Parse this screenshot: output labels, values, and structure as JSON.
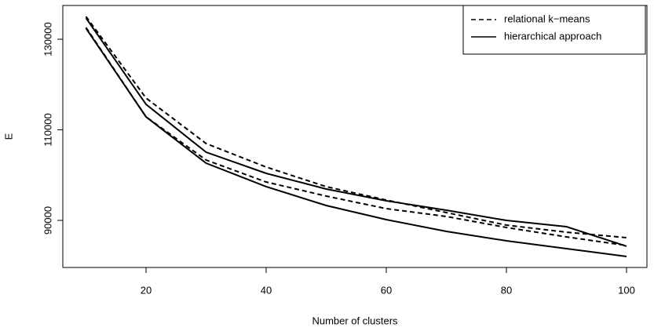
{
  "chart_data": {
    "type": "line",
    "xlabel": "Number of clusters",
    "ylabel": "E",
    "x": [
      10,
      20,
      30,
      40,
      50,
      60,
      70,
      80,
      90,
      100
    ],
    "series": [
      {
        "name": "relational k−means",
        "color": "#000000",
        "dash": "6,4",
        "values": [
          135020,
          117010,
          106970,
          101780,
          97450,
          94500,
          91730,
          88960,
          87400,
          86190
        ]
      },
      {
        "name": "hierarchical approach",
        "color": "#000000",
        "dash": "none",
        "values": [
          134680,
          115630,
          105060,
          100390,
          96930,
          94330,
          92250,
          90000,
          88610,
          84290
        ]
      },
      {
        "name": "relational k−means",
        "color": "#000000",
        "dash": "6,4",
        "values": [
          132600,
          112860,
          103330,
          98480,
          95370,
          92600,
          90870,
          88440,
          86360,
          84460
        ]
      },
      {
        "name": "hierarchical approach",
        "color": "#000000",
        "dash": "none",
        "values": [
          132420,
          112860,
          102640,
          97450,
          93290,
          90170,
          87580,
          85500,
          83770,
          82040
        ]
      }
    ],
    "xlim": [
      6.14,
      103.4
    ],
    "ylim": [
      79610,
      137450
    ],
    "xticks": [
      20,
      40,
      60,
      80,
      100
    ],
    "yticks": [
      90000,
      110000,
      130000
    ],
    "legend": "top-right"
  }
}
